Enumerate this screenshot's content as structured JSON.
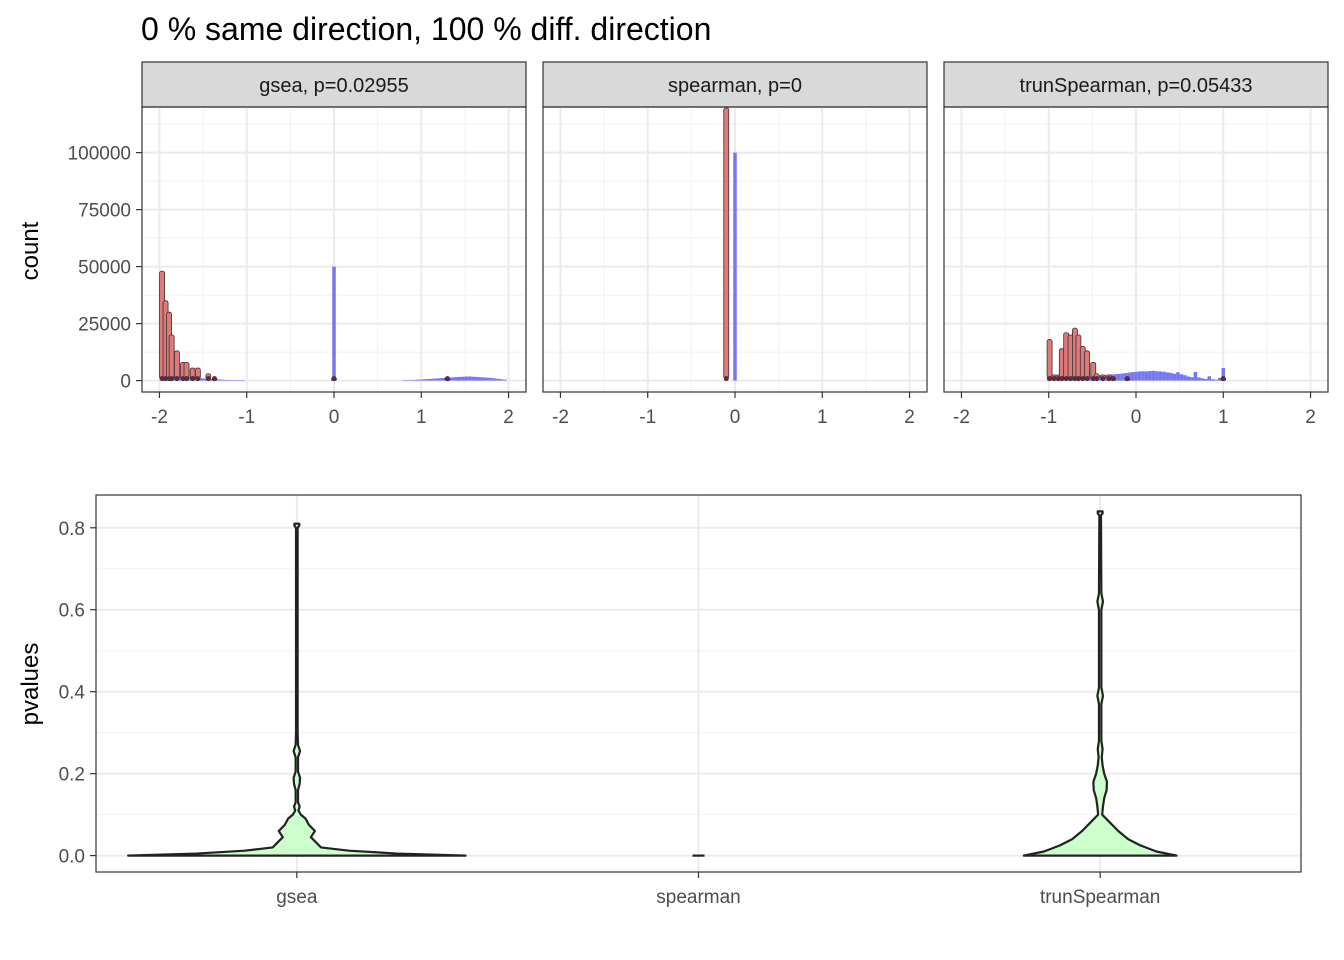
{
  "title": "0 % same direction, 100 % diff. direction",
  "colors": {
    "histogram_fill": "#7070ee",
    "dot_fill": "#e07a7a",
    "dot_stroke": "#333333",
    "violin_fill": "#ccffcc",
    "violin_stroke": "#222222",
    "strip_fill": "#d9d9d9"
  },
  "chart_data": [
    {
      "type": "histogram",
      "facet_labels": [
        "gsea, p=0.02955",
        "spearman, p=0",
        "trunSpearman, p=0.05433"
      ],
      "ylabel": "count",
      "xlim": [
        -2.2,
        2.2
      ],
      "ylim": [
        -5000,
        120000
      ],
      "x_ticks": [
        -2,
        -1,
        0,
        1,
        2
      ],
      "x_tick_labels": [
        "-2",
        "-1",
        "0",
        "1",
        "2"
      ],
      "y_ticks": [
        0,
        25000,
        50000,
        75000,
        100000
      ],
      "y_tick_labels": [
        "0",
        "25000",
        "50000",
        "75000",
        "100000"
      ],
      "grid": true,
      "bin_width": 0.04,
      "panels": [
        {
          "facet": "gsea, p=0.02955",
          "histogram_bins": [
            {
              "x": -1.96,
              "count": 2000
            },
            {
              "x": -1.92,
              "count": 2500
            },
            {
              "x": -1.88,
              "count": 2800
            },
            {
              "x": -1.84,
              "count": 2600
            },
            {
              "x": -1.8,
              "count": 2400
            },
            {
              "x": -1.76,
              "count": 2200
            },
            {
              "x": -1.72,
              "count": 2000
            },
            {
              "x": -1.68,
              "count": 1800
            },
            {
              "x": -1.64,
              "count": 1600
            },
            {
              "x": -1.6,
              "count": 1400
            },
            {
              "x": -1.56,
              "count": 1200
            },
            {
              "x": -1.52,
              "count": 1000
            },
            {
              "x": -1.48,
              "count": 900
            },
            {
              "x": -1.44,
              "count": 800
            },
            {
              "x": -1.4,
              "count": 700
            },
            {
              "x": -1.36,
              "count": 600
            },
            {
              "x": -1.32,
              "count": 500
            },
            {
              "x": -1.28,
              "count": 400
            },
            {
              "x": -1.24,
              "count": 300
            },
            {
              "x": -1.2,
              "count": 250
            },
            {
              "x": -1.16,
              "count": 200
            },
            {
              "x": -1.12,
              "count": 150
            },
            {
              "x": -1.08,
              "count": 120
            },
            {
              "x": -1.04,
              "count": 100
            },
            {
              "x": 0.0,
              "count": 50000
            },
            {
              "x": 0.8,
              "count": 150
            },
            {
              "x": 0.84,
              "count": 200
            },
            {
              "x": 0.88,
              "count": 250
            },
            {
              "x": 0.92,
              "count": 300
            },
            {
              "x": 0.96,
              "count": 400
            },
            {
              "x": 1.0,
              "count": 500
            },
            {
              "x": 1.04,
              "count": 600
            },
            {
              "x": 1.08,
              "count": 700
            },
            {
              "x": 1.12,
              "count": 800
            },
            {
              "x": 1.16,
              "count": 900
            },
            {
              "x": 1.2,
              "count": 1000
            },
            {
              "x": 1.24,
              "count": 1100
            },
            {
              "x": 1.28,
              "count": 1200
            },
            {
              "x": 1.32,
              "count": 1300
            },
            {
              "x": 1.36,
              "count": 1400
            },
            {
              "x": 1.4,
              "count": 1500
            },
            {
              "x": 1.44,
              "count": 1600
            },
            {
              "x": 1.48,
              "count": 1700
            },
            {
              "x": 1.52,
              "count": 1800
            },
            {
              "x": 1.56,
              "count": 1800
            },
            {
              "x": 1.6,
              "count": 1700
            },
            {
              "x": 1.64,
              "count": 1600
            },
            {
              "x": 1.68,
              "count": 1500
            },
            {
              "x": 1.72,
              "count": 1400
            },
            {
              "x": 1.76,
              "count": 1300
            },
            {
              "x": 1.8,
              "count": 1200
            },
            {
              "x": 1.84,
              "count": 1000
            },
            {
              "x": 1.88,
              "count": 800
            },
            {
              "x": 1.92,
              "count": 600
            },
            {
              "x": 1.96,
              "count": 400
            }
          ],
          "dot_columns": [
            {
              "x": -1.97,
              "height": 48000
            },
            {
              "x": -1.93,
              "height": 35000
            },
            {
              "x": -1.89,
              "height": 30000
            },
            {
              "x": -1.86,
              "height": 20000
            },
            {
              "x": -1.8,
              "height": 13000
            },
            {
              "x": -1.73,
              "height": 8000
            },
            {
              "x": -1.69,
              "height": 8000
            },
            {
              "x": -1.62,
              "height": 5500
            },
            {
              "x": -1.56,
              "height": 5500
            },
            {
              "x": -1.44,
              "height": 3000
            },
            {
              "x": -1.37,
              "height": 1000
            },
            {
              "x": 0.0,
              "height": 1000
            },
            {
              "x": 1.3,
              "height": 1000
            }
          ]
        },
        {
          "facet": "spearman, p=0",
          "histogram_bins": [
            {
              "x": 0.0,
              "count": 100000
            }
          ],
          "dot_columns": [
            {
              "x": -0.1,
              "height": 120000
            }
          ]
        },
        {
          "facet": "trunSpearman, p=0.05433",
          "histogram_bins": [
            {
              "x": -1.0,
              "count": 1000
            },
            {
              "x": -0.96,
              "count": 800
            },
            {
              "x": -0.92,
              "count": 900
            },
            {
              "x": -0.88,
              "count": 1000
            },
            {
              "x": -0.84,
              "count": 1200
            },
            {
              "x": -0.8,
              "count": 1400
            },
            {
              "x": -0.76,
              "count": 1500
            },
            {
              "x": -0.72,
              "count": 1600
            },
            {
              "x": -0.68,
              "count": 1700
            },
            {
              "x": -0.64,
              "count": 1800
            },
            {
              "x": -0.6,
              "count": 1900
            },
            {
              "x": -0.56,
              "count": 2000
            },
            {
              "x": -0.52,
              "count": 2100
            },
            {
              "x": -0.48,
              "count": 2200
            },
            {
              "x": -0.44,
              "count": 2300
            },
            {
              "x": -0.4,
              "count": 2400
            },
            {
              "x": -0.36,
              "count": 2500
            },
            {
              "x": -0.32,
              "count": 2600
            },
            {
              "x": -0.28,
              "count": 2700
            },
            {
              "x": -0.24,
              "count": 2800
            },
            {
              "x": -0.2,
              "count": 2900
            },
            {
              "x": -0.16,
              "count": 3100
            },
            {
              "x": -0.12,
              "count": 3300
            },
            {
              "x": -0.08,
              "count": 3500
            },
            {
              "x": -0.04,
              "count": 3700
            },
            {
              "x": 0.0,
              "count": 3800
            },
            {
              "x": 0.04,
              "count": 4000
            },
            {
              "x": 0.08,
              "count": 4100
            },
            {
              "x": 0.12,
              "count": 4000
            },
            {
              "x": 0.16,
              "count": 4200
            },
            {
              "x": 0.2,
              "count": 4300
            },
            {
              "x": 0.24,
              "count": 4100
            },
            {
              "x": 0.28,
              "count": 4000
            },
            {
              "x": 0.32,
              "count": 3900
            },
            {
              "x": 0.36,
              "count": 3600
            },
            {
              "x": 0.4,
              "count": 3400
            },
            {
              "x": 0.44,
              "count": 3000
            },
            {
              "x": 0.48,
              "count": 3700
            },
            {
              "x": 0.52,
              "count": 2800
            },
            {
              "x": 0.56,
              "count": 2400
            },
            {
              "x": 0.6,
              "count": 1800
            },
            {
              "x": 0.64,
              "count": 1500
            },
            {
              "x": 0.68,
              "count": 3800
            },
            {
              "x": 0.72,
              "count": 1400
            },
            {
              "x": 0.76,
              "count": 1000
            },
            {
              "x": 0.8,
              "count": 700
            },
            {
              "x": 0.84,
              "count": 1900
            },
            {
              "x": 0.88,
              "count": 600
            },
            {
              "x": 0.92,
              "count": 400
            },
            {
              "x": 0.96,
              "count": 1200
            },
            {
              "x": 1.0,
              "count": 5500
            }
          ],
          "dot_columns": [
            {
              "x": -0.99,
              "height": 18000
            },
            {
              "x": -0.94,
              "height": 2500
            },
            {
              "x": -0.89,
              "height": 2500
            },
            {
              "x": -0.85,
              "height": 14000
            },
            {
              "x": -0.8,
              "height": 21000
            },
            {
              "x": -0.75,
              "height": 20000
            },
            {
              "x": -0.7,
              "height": 23000
            },
            {
              "x": -0.66,
              "height": 20000
            },
            {
              "x": -0.61,
              "height": 15000
            },
            {
              "x": -0.56,
              "height": 13000
            },
            {
              "x": -0.49,
              "height": 8000
            },
            {
              "x": -0.45,
              "height": 3000
            },
            {
              "x": -0.38,
              "height": 2500
            },
            {
              "x": -0.31,
              "height": 2500
            },
            {
              "x": -0.26,
              "height": 1000
            },
            {
              "x": -0.1,
              "height": 1000
            },
            {
              "x": 1.0,
              "height": 1000
            }
          ]
        }
      ]
    },
    {
      "type": "violin",
      "categories": [
        "gsea",
        "spearman",
        "trunSpearman"
      ],
      "ylabel": "pvalues",
      "xlabel": "",
      "ylim": [
        -0.04,
        0.88
      ],
      "y_ticks": [
        0.0,
        0.2,
        0.4,
        0.6,
        0.8
      ],
      "y_tick_labels": [
        "0.0",
        "0.2",
        "0.4",
        "0.6",
        "0.8"
      ],
      "grid": true,
      "violins": [
        {
          "category": "gsea",
          "profile": [
            {
              "y": 0.0,
              "half_width": 0.42
            },
            {
              "y": 0.005,
              "half_width": 0.25
            },
            {
              "y": 0.012,
              "half_width": 0.13
            },
            {
              "y": 0.02,
              "half_width": 0.06
            },
            {
              "y": 0.03,
              "half_width": 0.05
            },
            {
              "y": 0.045,
              "half_width": 0.035
            },
            {
              "y": 0.06,
              "half_width": 0.045
            },
            {
              "y": 0.075,
              "half_width": 0.03
            },
            {
              "y": 0.09,
              "half_width": 0.022
            },
            {
              "y": 0.1,
              "half_width": 0.01
            },
            {
              "y": 0.11,
              "half_width": 0.004
            },
            {
              "y": 0.12,
              "half_width": 0.007
            },
            {
              "y": 0.13,
              "half_width": 0.003
            },
            {
              "y": 0.16,
              "half_width": 0.003
            },
            {
              "y": 0.175,
              "half_width": 0.007
            },
            {
              "y": 0.19,
              "half_width": 0.008
            },
            {
              "y": 0.205,
              "half_width": 0.003
            },
            {
              "y": 0.24,
              "half_width": 0.003
            },
            {
              "y": 0.255,
              "half_width": 0.008
            },
            {
              "y": 0.27,
              "half_width": 0.003
            },
            {
              "y": 0.3,
              "half_width": 0.002
            },
            {
              "y": 0.8,
              "half_width": 0.002
            },
            {
              "y": 0.805,
              "half_width": 0.006
            },
            {
              "y": 0.81,
              "half_width": 0.006
            }
          ]
        },
        {
          "category": "spearman",
          "profile": [
            {
              "y": 0.0,
              "half_width": 0.015
            }
          ]
        },
        {
          "category": "trunSpearman",
          "profile": [
            {
              "y": 0.0,
              "half_width": 0.19
            },
            {
              "y": 0.01,
              "half_width": 0.14
            },
            {
              "y": 0.025,
              "half_width": 0.1
            },
            {
              "y": 0.04,
              "half_width": 0.07
            },
            {
              "y": 0.06,
              "half_width": 0.045
            },
            {
              "y": 0.08,
              "half_width": 0.025
            },
            {
              "y": 0.1,
              "half_width": 0.005
            },
            {
              "y": 0.12,
              "half_width": 0.007
            },
            {
              "y": 0.14,
              "half_width": 0.01
            },
            {
              "y": 0.16,
              "half_width": 0.016
            },
            {
              "y": 0.18,
              "half_width": 0.017
            },
            {
              "y": 0.2,
              "half_width": 0.01
            },
            {
              "y": 0.22,
              "half_width": 0.006
            },
            {
              "y": 0.24,
              "half_width": 0.004
            },
            {
              "y": 0.26,
              "half_width": 0.006
            },
            {
              "y": 0.28,
              "half_width": 0.003
            },
            {
              "y": 0.37,
              "half_width": 0.003
            },
            {
              "y": 0.39,
              "half_width": 0.007
            },
            {
              "y": 0.41,
              "half_width": 0.003
            },
            {
              "y": 0.6,
              "half_width": 0.003
            },
            {
              "y": 0.62,
              "half_width": 0.007
            },
            {
              "y": 0.64,
              "half_width": 0.003
            },
            {
              "y": 0.83,
              "half_width": 0.002
            },
            {
              "y": 0.835,
              "half_width": 0.006
            },
            {
              "y": 0.84,
              "half_width": 0.006
            }
          ]
        }
      ]
    }
  ]
}
